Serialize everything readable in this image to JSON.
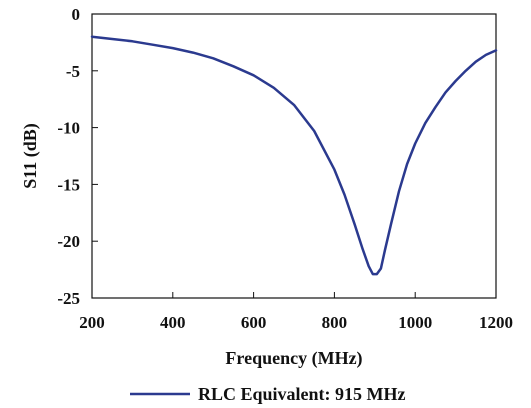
{
  "chart_data": {
    "type": "line",
    "title": "",
    "xlabel": "Frequency (MHz)",
    "ylabel": "S11 (dB)",
    "xlim": [
      200,
      1200
    ],
    "ylim": [
      -25,
      0
    ],
    "xticks": [
      200,
      400,
      600,
      800,
      1000,
      1200
    ],
    "yticks": [
      0,
      -5,
      -10,
      -15,
      -20,
      -25
    ],
    "grid": false,
    "legend": "bottom-center",
    "series": [
      {
        "name": "RLC Equivalent: 915 MHz",
        "color": "#2b3a8f",
        "x": [
          200,
          250,
          300,
          350,
          400,
          450,
          500,
          550,
          600,
          650,
          700,
          750,
          800,
          825,
          850,
          870,
          885,
          895,
          905,
          915,
          925,
          940,
          960,
          980,
          1000,
          1025,
          1050,
          1075,
          1100,
          1125,
          1150,
          1175,
          1200
        ],
        "y": [
          -2.0,
          -2.2,
          -2.4,
          -2.7,
          -3.0,
          -3.4,
          -3.9,
          -4.6,
          -5.4,
          -6.5,
          -8.0,
          -10.3,
          -13.7,
          -15.9,
          -18.5,
          -20.7,
          -22.2,
          -22.9,
          -22.9,
          -22.4,
          -20.8,
          -18.5,
          -15.6,
          -13.2,
          -11.4,
          -9.6,
          -8.2,
          -6.9,
          -5.9,
          -5.0,
          -4.2,
          -3.6,
          -3.2
        ]
      }
    ]
  }
}
